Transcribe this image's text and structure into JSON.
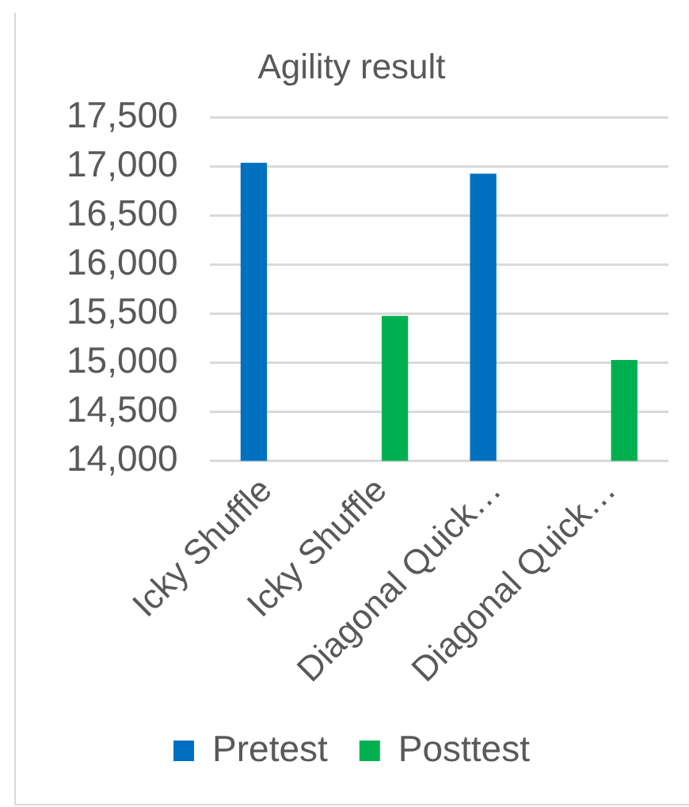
{
  "chart_data": {
    "type": "bar",
    "title": "Agility result",
    "categories": [
      "Icky Shuffle",
      "Icky Shuffle",
      "Diagonal Quick…",
      "Diagonal Quick…"
    ],
    "series": [
      {
        "name": "Pretest",
        "color": "#0070c0",
        "values": [
          17040,
          null,
          16930,
          null
        ]
      },
      {
        "name": "Posttest",
        "color": "#00b050",
        "values": [
          null,
          15480,
          null,
          15030
        ]
      }
    ],
    "ylim": [
      14000,
      17500
    ],
    "yticks": [
      {
        "value": 14000,
        "label": "14,000"
      },
      {
        "value": 14500,
        "label": "14,500"
      },
      {
        "value": 15000,
        "label": "15,000"
      },
      {
        "value": 15500,
        "label": "15,500"
      },
      {
        "value": 16000,
        "label": "16,000"
      },
      {
        "value": 16500,
        "label": "16,500"
      },
      {
        "value": 17000,
        "label": "17,000"
      },
      {
        "value": 17500,
        "label": "17,500"
      }
    ],
    "grid": "y",
    "legend": "bottom"
  }
}
